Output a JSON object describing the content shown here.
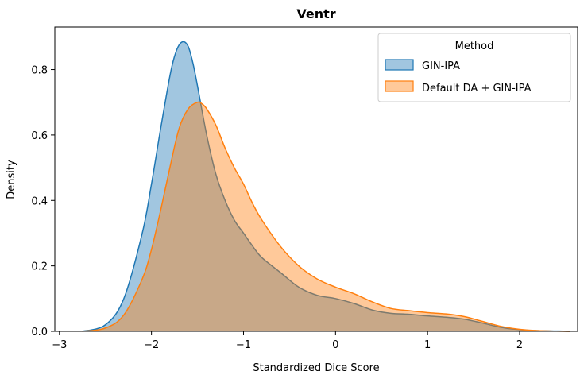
{
  "chart_data": {
    "type": "area",
    "title": "Ventr",
    "xlabel": "Standardized Dice Score",
    "ylabel": "Density",
    "xlim": [
      -3.05,
      2.63
    ],
    "ylim": [
      0,
      0.93
    ],
    "x_ticks": [
      -3,
      -2,
      -1,
      0,
      1,
      2
    ],
    "x_tick_labels": [
      "−3",
      "−2",
      "−1",
      "0",
      "1",
      "2"
    ],
    "y_ticks": [
      0.0,
      0.2,
      0.4,
      0.6,
      0.8
    ],
    "y_tick_labels": [
      "0.0",
      "0.2",
      "0.4",
      "0.6",
      "0.8"
    ],
    "grid": false,
    "legend": {
      "title": "Method",
      "placement": "top-right"
    },
    "series": [
      {
        "name": "GIN-IPA",
        "color": "#1f77b4",
        "x": [
          -2.75,
          -2.5,
          -2.3,
          -2.1,
          -2.0,
          -1.9,
          -1.8,
          -1.75,
          -1.7,
          -1.65,
          -1.6,
          -1.55,
          -1.5,
          -1.4,
          -1.3,
          -1.2,
          -1.1,
          -1.0,
          -0.9,
          -0.8,
          -0.6,
          -0.4,
          -0.2,
          0.0,
          0.2,
          0.4,
          0.6,
          0.8,
          1.0,
          1.2,
          1.4,
          1.6,
          1.8,
          2.0,
          2.2,
          2.4,
          2.55
        ],
        "y": [
          0.0,
          0.02,
          0.1,
          0.3,
          0.45,
          0.62,
          0.78,
          0.84,
          0.875,
          0.885,
          0.87,
          0.82,
          0.75,
          0.6,
          0.48,
          0.4,
          0.34,
          0.3,
          0.26,
          0.225,
          0.18,
          0.135,
          0.11,
          0.1,
          0.085,
          0.065,
          0.055,
          0.052,
          0.047,
          0.043,
          0.037,
          0.025,
          0.012,
          0.005,
          0.002,
          0.001,
          0.0
        ]
      },
      {
        "name": "Default DA + GIN-IPA",
        "color": "#ff7f0e",
        "x": [
          -2.75,
          -2.5,
          -2.3,
          -2.1,
          -2.0,
          -1.9,
          -1.8,
          -1.7,
          -1.6,
          -1.5,
          -1.45,
          -1.4,
          -1.3,
          -1.2,
          -1.1,
          -1.0,
          -0.9,
          -0.8,
          -0.6,
          -0.4,
          -0.2,
          0.0,
          0.2,
          0.4,
          0.6,
          0.8,
          1.0,
          1.2,
          1.4,
          1.6,
          1.8,
          2.0,
          2.2,
          2.4,
          2.55
        ],
        "y": [
          0.0,
          0.01,
          0.05,
          0.16,
          0.25,
          0.37,
          0.5,
          0.62,
          0.68,
          0.7,
          0.695,
          0.68,
          0.63,
          0.56,
          0.5,
          0.45,
          0.39,
          0.34,
          0.26,
          0.2,
          0.16,
          0.135,
          0.115,
          0.09,
          0.07,
          0.063,
          0.057,
          0.053,
          0.045,
          0.03,
          0.015,
          0.006,
          0.002,
          0.0005,
          0.0
        ]
      }
    ]
  }
}
